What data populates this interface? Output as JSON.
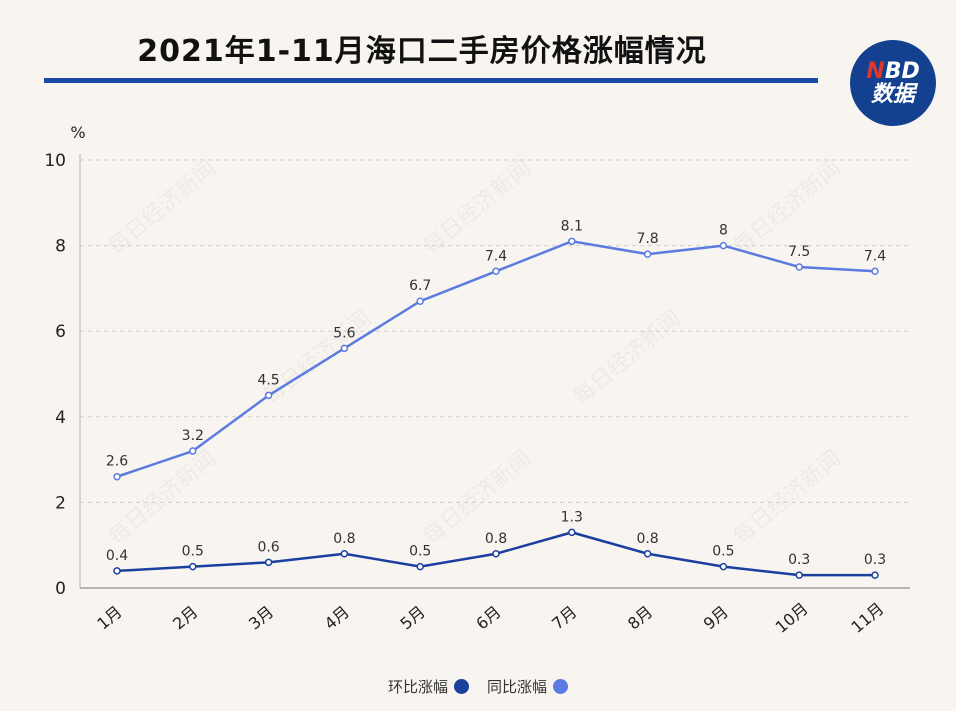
{
  "title": "2021年1-11月海口二手房价格涨幅情况",
  "logo": {
    "line1_accent": "N",
    "line1_rest": "BD",
    "line2": "数据"
  },
  "watermark": "每日经济新闻",
  "colors": {
    "mom": "#1a3f9e",
    "yoy": "#5b7be0",
    "rule": "#1a4aa3",
    "logo": "#14418f"
  },
  "chart_data": {
    "type": "line",
    "title": "2021年1-11月海口二手房价格涨幅情况",
    "ylabel": "%",
    "ylim": [
      0,
      10
    ],
    "yticks": [
      0,
      2,
      4,
      6,
      8,
      10
    ],
    "grid": true,
    "legend_position": "bottom",
    "categories": [
      "1月",
      "2月",
      "3月",
      "4月",
      "5月",
      "6月",
      "7月",
      "8月",
      "9月",
      "10月",
      "11月"
    ],
    "series": [
      {
        "name": "同比涨幅",
        "color": "#5b7be0",
        "values": [
          2.6,
          3.2,
          4.5,
          5.6,
          6.7,
          7.4,
          8.1,
          7.8,
          8,
          7.5,
          7.4
        ]
      },
      {
        "name": "环比涨幅",
        "color": "#1a3f9e",
        "values": [
          0.4,
          0.5,
          0.6,
          0.8,
          0.5,
          0.8,
          1.3,
          0.8,
          0.5,
          0.3,
          0.3
        ]
      }
    ]
  },
  "legend": [
    {
      "label": "环比涨幅",
      "color": "#1a3f9e"
    },
    {
      "label": "同比涨幅",
      "color": "#5b7be0"
    }
  ]
}
